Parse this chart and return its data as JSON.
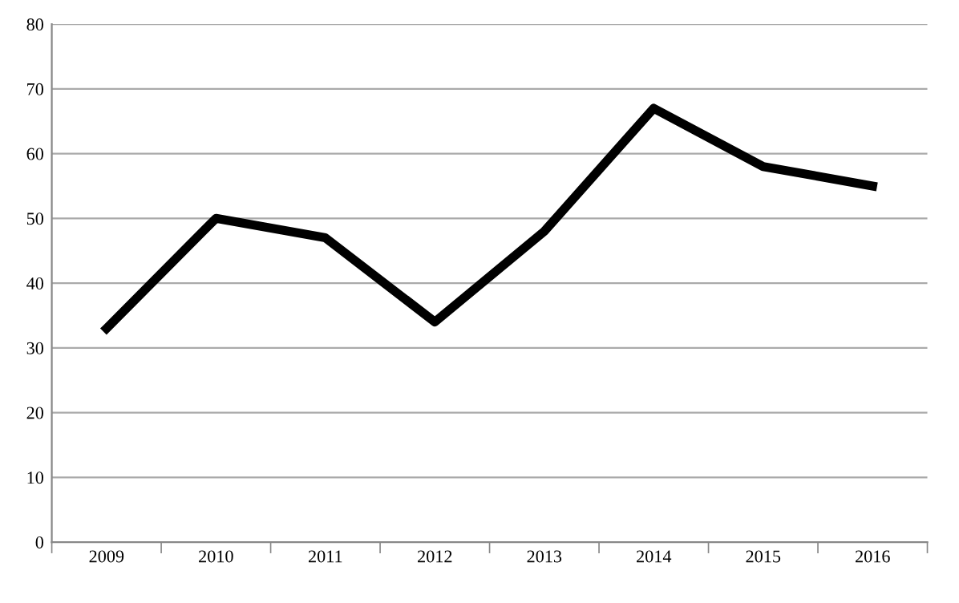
{
  "chart_data": {
    "type": "line",
    "categories": [
      "2009",
      "2010",
      "2011",
      "2012",
      "2013",
      "2014",
      "2015",
      "2016"
    ],
    "series": [
      {
        "color": "#000000",
        "values": [
          33,
          50,
          47,
          34,
          48,
          67,
          58,
          55
        ]
      }
    ],
    "ylim": [
      0,
      80
    ],
    "yticks": [
      0,
      10,
      20,
      30,
      40,
      50,
      60,
      70,
      80
    ],
    "grid": "y",
    "marker": "none",
    "line_style": "solid"
  }
}
